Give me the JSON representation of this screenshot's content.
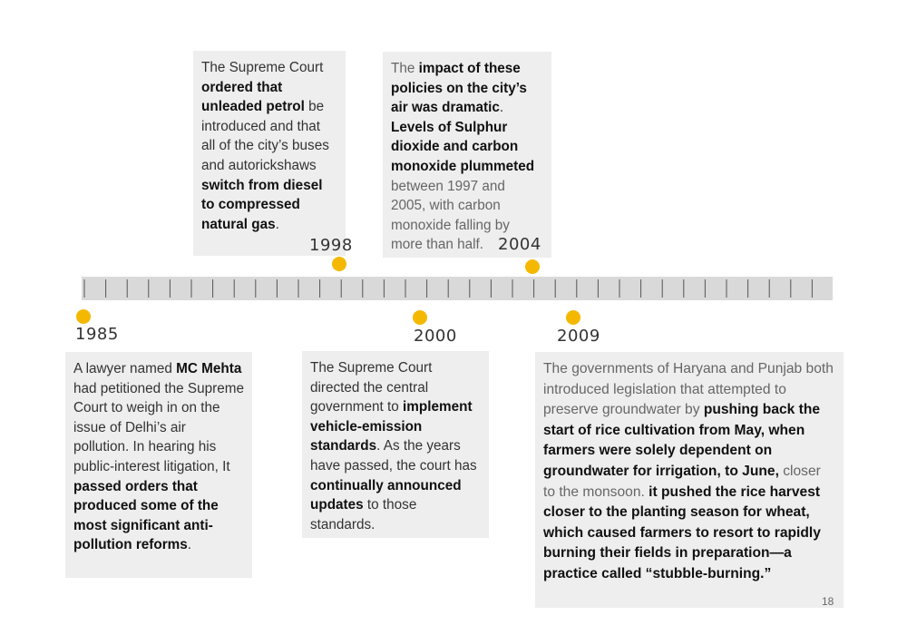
{
  "timeline": {
    "events": [
      {
        "year": "1985",
        "segments": [
          {
            "t": "A lawyer named ",
            "b": false
          },
          {
            "t": "MC Mehta",
            "b": true
          },
          {
            "t": " had petitioned the Supreme Court to weigh in on the issue of Delhi’s air pollution. In hearing his public-interest litigation, It ",
            "b": false
          },
          {
            "t": "passed orders that produced some of the most significant anti-pollution reforms",
            "b": true
          },
          {
            "t": ".",
            "b": false
          }
        ]
      },
      {
        "year": "1998",
        "segments": [
          {
            "t": "The Supreme Court ",
            "b": false
          },
          {
            "t": "ordered that unleaded petrol",
            "b": true
          },
          {
            "t": " be introduced and that all of the city’s buses and autorickshaws ",
            "b": false
          },
          {
            "t": "switch from diesel to compressed natural gas",
            "b": true
          },
          {
            "t": ".",
            "b": false
          }
        ]
      },
      {
        "year": "2000",
        "segments": [
          {
            "t": "The Supreme Court directed the central government to ",
            "b": false
          },
          {
            "t": "implement vehicle-emission standards",
            "b": true
          },
          {
            "t": ". As the years have passed, the court has ",
            "b": false
          },
          {
            "t": "continually announced updates",
            "b": true
          },
          {
            "t": " to those standards.",
            "b": false
          }
        ]
      },
      {
        "year": "2004",
        "segments": [
          {
            "t": "The ",
            "b": false,
            "g": true
          },
          {
            "t": "impact of these policies on the city’s air was dramatic",
            "b": true
          },
          {
            "t": ". ",
            "b": false
          },
          {
            "t": "Levels of Sulphur dioxide and carbon monoxide plummeted",
            "b": true
          },
          {
            "t": " between 1997 and 2005, with carbon monoxide falling by more than half.",
            "b": false,
            "g": true
          }
        ]
      },
      {
        "year": "2009",
        "segments": [
          {
            "t": "The governments of Haryana and Punjab both introduced legislation that attempted to preserve groundwater by ",
            "b": false,
            "g": true
          },
          {
            "t": "pushing back the start of rice cultivation from May, when farmers were solely dependent on groundwater for irrigation, to June,",
            "b": true
          },
          {
            "t": " closer to the monsoon. ",
            "b": false,
            "g": true
          },
          {
            "t": "it pushed the rice harvest closer to the planting season for wheat, which caused farmers to resort to rapidly burning their fields in preparation—a practice called “stubble-burning.”",
            "b": true
          }
        ]
      }
    ]
  },
  "page_number": "18",
  "colors": {
    "dot": "#f5b800",
    "bar": "#d9d9d9",
    "box": "#eeeeee"
  }
}
